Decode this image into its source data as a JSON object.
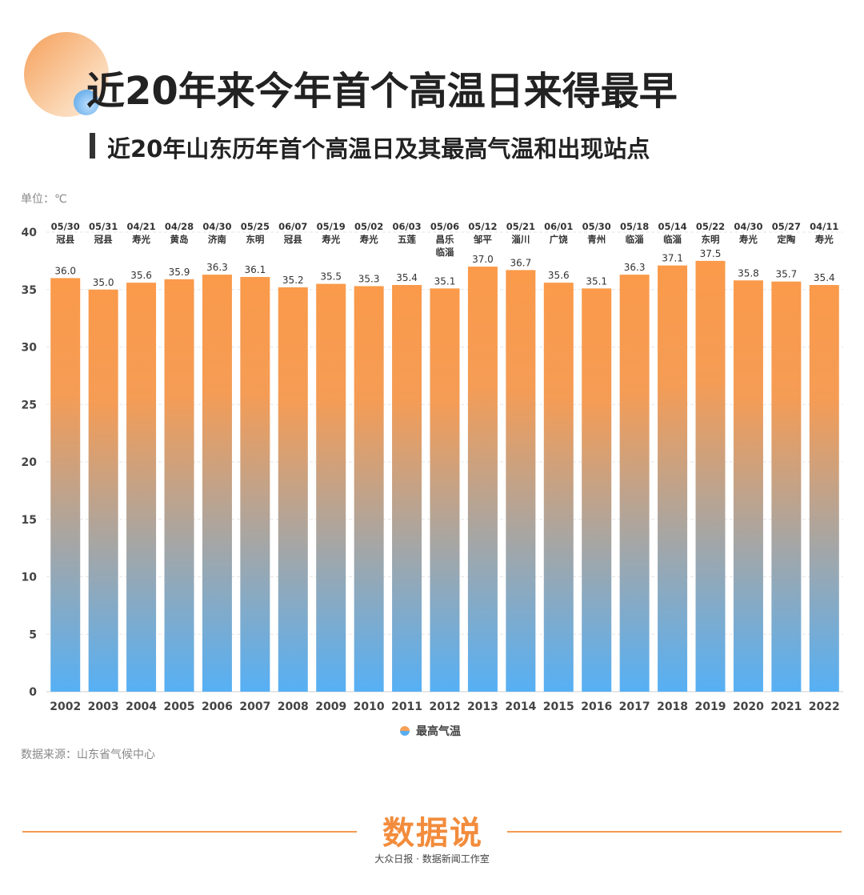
{
  "header": {
    "title": "近20年来今年首个高温日来得最早",
    "subtitle": "近20年山东历年首个高温日及其最高气温和出现站点"
  },
  "unit_label": "单位：℃",
  "legend_label": "最高气温",
  "source": "数据来源：山东省气候中心",
  "brand": {
    "logo": "数据说",
    "sub": "大众日报 · 数据新闻工作室"
  },
  "colors": {
    "bar_top": "#fa9a4a",
    "bar_bottom": "#56b0f5"
  },
  "chart_data": {
    "type": "bar",
    "categories": [
      "2002",
      "2003",
      "2004",
      "2005",
      "2006",
      "2007",
      "2008",
      "2009",
      "2010",
      "2011",
      "2012",
      "2013",
      "2014",
      "2015",
      "2016",
      "2017",
      "2018",
      "2019",
      "2020",
      "2021",
      "2022"
    ],
    "values": [
      36.0,
      35.0,
      35.6,
      35.9,
      36.3,
      36.1,
      35.2,
      35.5,
      35.3,
      35.4,
      35.1,
      37.0,
      36.7,
      35.6,
      35.1,
      36.3,
      37.1,
      37.5,
      35.8,
      35.7,
      35.4
    ],
    "value_labels": [
      "36.0",
      "35.0",
      "35.6",
      "35.9",
      "36.3",
      "36.1",
      "35.2",
      "35.5",
      "35.3",
      "35.4",
      "35.1",
      "37.0",
      "36.7",
      "35.6",
      "35.1",
      "36.3",
      "37.1",
      "37.5",
      "35.8",
      "35.7",
      "35.4"
    ],
    "dates": [
      "05/30",
      "05/31",
      "04/21",
      "04/28",
      "04/30",
      "05/25",
      "06/07",
      "05/19",
      "05/02",
      "06/03",
      "05/06",
      "05/12",
      "05/21",
      "06/01",
      "05/30",
      "05/18",
      "05/14",
      "05/22",
      "04/30",
      "05/27",
      "04/11"
    ],
    "stations": [
      [
        "冠县"
      ],
      [
        "冠县"
      ],
      [
        "寿光"
      ],
      [
        "黄岛"
      ],
      [
        "济南"
      ],
      [
        "东明"
      ],
      [
        "冠县"
      ],
      [
        "寿光"
      ],
      [
        "寿光"
      ],
      [
        "五莲"
      ],
      [
        "昌乐",
        "临淄"
      ],
      [
        "邹平"
      ],
      [
        "淄川"
      ],
      [
        "广饶"
      ],
      [
        "青州"
      ],
      [
        "临淄"
      ],
      [
        "临淄"
      ],
      [
        "东明"
      ],
      [
        "寿光"
      ],
      [
        "定陶"
      ],
      [
        "寿光"
      ]
    ],
    "yticks": [
      0,
      5,
      10,
      15,
      20,
      25,
      30,
      35,
      40
    ],
    "ylim": [
      0,
      40
    ],
    "series": [
      {
        "name": "最高气温"
      }
    ],
    "legend_position": "bottom-center",
    "grid": true
  }
}
